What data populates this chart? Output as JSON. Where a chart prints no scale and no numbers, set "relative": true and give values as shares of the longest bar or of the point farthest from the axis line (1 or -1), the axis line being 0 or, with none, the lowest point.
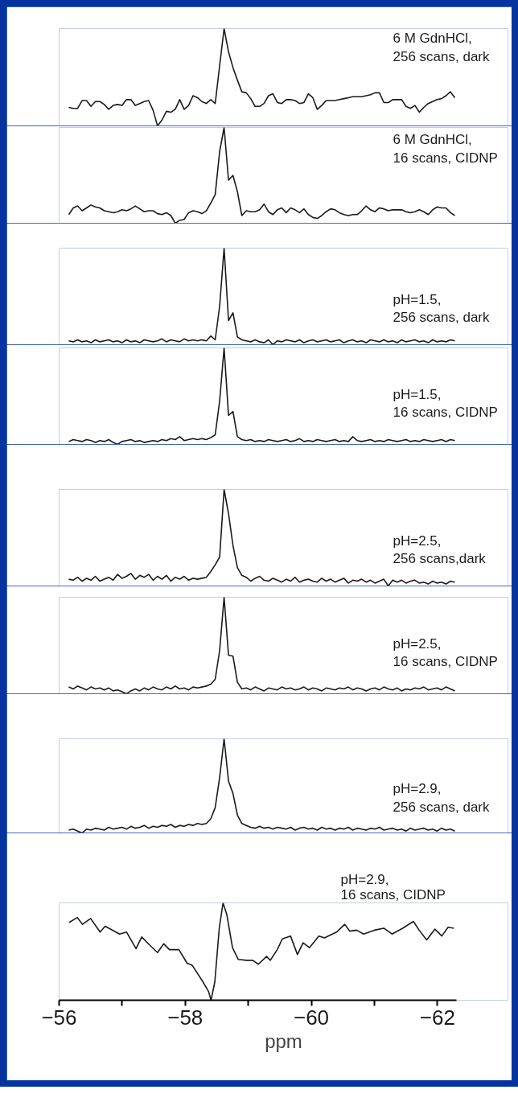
{
  "chart_data": [
    {
      "type": "line",
      "relative": true,
      "tick_labels": false,
      "grid": false,
      "annotations": [
        "6 M GdnHCl,\n256 scans, dark"
      ],
      "categories": [
        null,
        null,
        null,
        null,
        null,
        null,
        null,
        null,
        null,
        null,
        null,
        null,
        null,
        null,
        null,
        null,
        null,
        null,
        null,
        null,
        null,
        null,
        null,
        null,
        null,
        null,
        null,
        null,
        null,
        null,
        null,
        null,
        null,
        null,
        null,
        null,
        null,
        null,
        null,
        null,
        null,
        null,
        null,
        null,
        null,
        null,
        null,
        null,
        null,
        null,
        null,
        null,
        null,
        null,
        null,
        null,
        null,
        null,
        null,
        null,
        null,
        null,
        null,
        null,
        null,
        null,
        null,
        null,
        null,
        null,
        null,
        null,
        null,
        null,
        null,
        null,
        null,
        null,
        null,
        null,
        null,
        null,
        null,
        null,
        null,
        null,
        null,
        null
      ],
      "series": [
        {
          "color": "#1a1a1a",
          "values": [
            0.19,
            0.18,
            0.18,
            0.26,
            0.26,
            0.2,
            0.25,
            0.25,
            0.22,
            0.17,
            0.21,
            0.22,
            0.21,
            0.27,
            0.27,
            0.21,
            0.23,
            0.25,
            0.26,
            0.16,
            0.0,
            0.06,
            0.15,
            0.14,
            0.17,
            0.27,
            0.17,
            0.21,
            0.31,
            0.29,
            0.25,
            0.23,
            0.27,
            0.23,
            0.62,
            1.0,
            0.76,
            0.6,
            0.47,
            0.35,
            0.34,
            0.28,
            0.2,
            0.2,
            0.23,
            0.31,
            0.33,
            0.24,
            0.23,
            0.27,
            0.27,
            0.26,
            0.23,
            0.24,
            0.33,
            0.29,
            0.17,
            0.21,
            0.26,
            0.26,
            0.26,
            0.27,
            0.28,
            0.29,
            0.3,
            0.3,
            0.3,
            0.31,
            0.32,
            0.34,
            0.34,
            0.24,
            0.24,
            0.27,
            0.27,
            0.27,
            0.2,
            0.18,
            0.21,
            0.14,
            0.19,
            0.23,
            0.25,
            0.27,
            0.28,
            0.31,
            0.35,
            0.29
          ]
        }
      ]
    },
    {
      "type": "line",
      "relative": true,
      "tick_labels": false,
      "grid": false,
      "annotations": [
        "6 M GdnHCl,\n16 scans, CIDNP"
      ],
      "categories": [
        null,
        null,
        null,
        null,
        null,
        null,
        null,
        null,
        null,
        null,
        null,
        null,
        null,
        null,
        null,
        null,
        null,
        null,
        null,
        null,
        null,
        null,
        null,
        null,
        null,
        null,
        null,
        null,
        null,
        null,
        null,
        null,
        null,
        null,
        null,
        null,
        null,
        null,
        null,
        null,
        null,
        null,
        null,
        null,
        null,
        null,
        null,
        null,
        null,
        null,
        null,
        null,
        null,
        null,
        null,
        null,
        null,
        null,
        null,
        null,
        null,
        null,
        null,
        null,
        null,
        null,
        null,
        null,
        null,
        null,
        null,
        null,
        null,
        null,
        null,
        null,
        null,
        null,
        null,
        null,
        null,
        null,
        null,
        null,
        null,
        null,
        null,
        null
      ],
      "series": [
        {
          "color": "#1a1a1a",
          "values": [
            0.09,
            0.16,
            0.18,
            0.13,
            0.16,
            0.19,
            0.17,
            0.16,
            0.13,
            0.12,
            0.11,
            0.12,
            0.14,
            0.13,
            0.15,
            0.18,
            0.15,
            0.12,
            0.13,
            0.13,
            0.1,
            0.09,
            0.11,
            0.08,
            0.0,
            0.03,
            0.04,
            0.11,
            0.13,
            0.12,
            0.1,
            0.13,
            0.21,
            0.3,
            0.75,
            1.0,
            0.45,
            0.5,
            0.33,
            0.08,
            0.13,
            0.12,
            0.12,
            0.14,
            0.2,
            0.12,
            0.09,
            0.14,
            0.16,
            0.11,
            0.16,
            0.14,
            0.11,
            0.15,
            0.09,
            0.06,
            0.05,
            0.08,
            0.12,
            0.15,
            0.14,
            0.11,
            0.09,
            0.08,
            0.09,
            0.09,
            0.13,
            0.18,
            0.14,
            0.12,
            0.16,
            0.15,
            0.13,
            0.14,
            0.14,
            0.14,
            0.12,
            0.11,
            0.12,
            0.14,
            0.12,
            0.09,
            0.14,
            0.17,
            0.16,
            0.16,
            0.11,
            0.08
          ]
        }
      ]
    },
    {
      "type": "line",
      "relative": true,
      "tick_labels": false,
      "grid": false,
      "annotations": [
        "pH=1.5,\n256 scans, dark"
      ],
      "categories": [
        null,
        null,
        null,
        null,
        null,
        null,
        null,
        null,
        null,
        null,
        null,
        null,
        null,
        null,
        null,
        null,
        null,
        null,
        null,
        null,
        null,
        null,
        null,
        null,
        null,
        null,
        null,
        null,
        null,
        null,
        null,
        null,
        null,
        null,
        null,
        null,
        null,
        null,
        null,
        null,
        null,
        null,
        null,
        null,
        null,
        null,
        null,
        null,
        null,
        null,
        null,
        null,
        null,
        null,
        null,
        null,
        null,
        null,
        null,
        null,
        null,
        null,
        null,
        null,
        null,
        null,
        null,
        null,
        null,
        null,
        null,
        null,
        null,
        null,
        null,
        null,
        null,
        null,
        null,
        null,
        null,
        null,
        null,
        null,
        null,
        null,
        null,
        null
      ],
      "series": [
        {
          "color": "#1a1a1a",
          "values": [
            0.04,
            0.03,
            0.05,
            0.03,
            0.04,
            0.02,
            0.05,
            0.03,
            0.04,
            0.05,
            0.03,
            0.04,
            0.02,
            0.05,
            0.03,
            0.04,
            0.02,
            0.05,
            0.04,
            0.03,
            0.04,
            0.06,
            0.03,
            0.05,
            0.04,
            0.03,
            0.06,
            0.04,
            0.05,
            0.04,
            0.05,
            0.04,
            0.09,
            0.05,
            0.4,
            1.0,
            0.25,
            0.33,
            0.08,
            0.05,
            0.04,
            0.03,
            0.05,
            0.03,
            0.02,
            0.05,
            0.0,
            0.04,
            0.03,
            0.05,
            0.04,
            0.03,
            0.05,
            0.02,
            0.04,
            0.05,
            0.03,
            0.04,
            0.05,
            0.03,
            0.04,
            0.05,
            0.02,
            0.04,
            0.05,
            0.03,
            0.04,
            0.02,
            0.05,
            0.04,
            0.03,
            0.05,
            0.03,
            0.04,
            0.02,
            0.05,
            0.03,
            0.04,
            0.05,
            0.03,
            0.04,
            0.02,
            0.05,
            0.03,
            0.04,
            0.03,
            0.05,
            0.04
          ]
        }
      ]
    },
    {
      "type": "line",
      "relative": true,
      "tick_labels": false,
      "grid": false,
      "annotations": [
        "pH=1.5,\n16 scans, CIDNP"
      ],
      "categories": [
        null,
        null,
        null,
        null,
        null,
        null,
        null,
        null,
        null,
        null,
        null,
        null,
        null,
        null,
        null,
        null,
        null,
        null,
        null,
        null,
        null,
        null,
        null,
        null,
        null,
        null,
        null,
        null,
        null,
        null,
        null,
        null,
        null,
        null,
        null,
        null,
        null,
        null,
        null,
        null,
        null,
        null,
        null,
        null,
        null,
        null,
        null,
        null,
        null,
        null,
        null,
        null,
        null,
        null,
        null,
        null,
        null,
        null,
        null,
        null,
        null,
        null,
        null,
        null,
        null,
        null,
        null,
        null,
        null,
        null,
        null,
        null,
        null,
        null,
        null,
        null,
        null,
        null,
        null,
        null,
        null,
        null,
        null,
        null,
        null,
        null,
        null,
        null
      ],
      "series": [
        {
          "color": "#1a1a1a",
          "values": [
            0.03,
            0.05,
            0.04,
            0.03,
            0.05,
            0.04,
            0.02,
            0.04,
            0.03,
            0.05,
            0.02,
            0.0,
            0.03,
            0.04,
            0.05,
            0.03,
            0.04,
            0.02,
            0.03,
            0.04,
            0.03,
            0.05,
            0.04,
            0.06,
            0.05,
            0.08,
            0.04,
            0.05,
            0.06,
            0.05,
            0.06,
            0.05,
            0.07,
            0.1,
            0.45,
            1.0,
            0.3,
            0.34,
            0.08,
            0.05,
            0.04,
            0.05,
            0.03,
            0.04,
            0.03,
            0.05,
            0.04,
            0.03,
            0.04,
            0.05,
            0.03,
            0.04,
            0.06,
            0.03,
            0.04,
            0.03,
            0.05,
            0.04,
            0.03,
            0.04,
            0.05,
            0.03,
            0.04,
            0.03,
            0.08,
            0.04,
            0.03,
            0.04,
            0.05,
            0.03,
            0.04,
            0.03,
            0.05,
            0.04,
            0.03,
            0.04,
            0.05,
            0.03,
            0.04,
            0.03,
            0.05,
            0.04,
            0.03,
            0.04,
            0.05,
            0.03,
            0.05,
            0.04
          ]
        }
      ]
    },
    {
      "type": "line",
      "relative": true,
      "tick_labels": false,
      "grid": false,
      "annotations": [
        "pH=2.5,\n256 scans,dark"
      ],
      "categories": [
        null,
        null,
        null,
        null,
        null,
        null,
        null,
        null,
        null,
        null,
        null,
        null,
        null,
        null,
        null,
        null,
        null,
        null,
        null,
        null,
        null,
        null,
        null,
        null,
        null,
        null,
        null,
        null,
        null,
        null,
        null,
        null,
        null,
        null,
        null,
        null,
        null,
        null,
        null,
        null,
        null,
        null,
        null,
        null,
        null,
        null,
        null,
        null,
        null,
        null,
        null,
        null,
        null,
        null,
        null,
        null,
        null,
        null,
        null,
        null,
        null,
        null,
        null,
        null,
        null,
        null,
        null,
        null,
        null,
        null,
        null,
        null,
        null,
        null,
        null,
        null,
        null,
        null,
        null,
        null,
        null,
        null,
        null,
        null,
        null,
        null,
        null,
        null
      ],
      "series": [
        {
          "color": "#1a1a1a",
          "values": [
            0.07,
            0.06,
            0.09,
            0.05,
            0.08,
            0.06,
            0.1,
            0.05,
            0.07,
            0.09,
            0.06,
            0.12,
            0.08,
            0.1,
            0.13,
            0.07,
            0.11,
            0.09,
            0.12,
            0.06,
            0.1,
            0.07,
            0.11,
            0.05,
            0.09,
            0.07,
            0.1,
            0.06,
            0.08,
            0.07,
            0.08,
            0.09,
            0.15,
            0.22,
            0.3,
            1.0,
            0.75,
            0.42,
            0.19,
            0.11,
            0.09,
            0.05,
            0.08,
            0.1,
            0.06,
            0.05,
            0.08,
            0.06,
            0.04,
            0.07,
            0.05,
            0.09,
            0.04,
            0.06,
            0.07,
            0.05,
            0.04,
            0.08,
            0.05,
            0.07,
            0.04,
            0.06,
            0.08,
            0.03,
            0.06,
            0.05,
            0.07,
            0.04,
            0.06,
            0.03,
            0.05,
            0.07,
            0.0,
            0.06,
            0.04,
            0.06,
            0.03,
            0.05,
            0.06,
            0.03,
            0.04,
            0.02,
            0.05,
            0.03,
            0.04,
            0.02,
            0.05,
            0.04
          ]
        }
      ]
    },
    {
      "type": "line",
      "relative": true,
      "tick_labels": false,
      "grid": false,
      "annotations": [
        "pH=2.5,\n16 scans, CIDNP"
      ],
      "categories": [
        null,
        null,
        null,
        null,
        null,
        null,
        null,
        null,
        null,
        null,
        null,
        null,
        null,
        null,
        null,
        null,
        null,
        null,
        null,
        null,
        null,
        null,
        null,
        null,
        null,
        null,
        null,
        null,
        null,
        null,
        null,
        null,
        null,
        null,
        null,
        null,
        null,
        null,
        null,
        null,
        null,
        null,
        null,
        null,
        null,
        null,
        null,
        null,
        null,
        null,
        null,
        null,
        null,
        null,
        null,
        null,
        null,
        null,
        null,
        null,
        null,
        null,
        null,
        null,
        null,
        null,
        null,
        null,
        null,
        null,
        null,
        null,
        null,
        null,
        null,
        null,
        null,
        null,
        null,
        null,
        null,
        null,
        null,
        null,
        null,
        null,
        null,
        null
      ],
      "series": [
        {
          "color": "#1a1a1a",
          "values": [
            0.07,
            0.05,
            0.08,
            0.06,
            0.04,
            0.07,
            0.05,
            0.06,
            0.04,
            0.06,
            0.03,
            0.04,
            0.02,
            0.0,
            0.03,
            0.05,
            0.03,
            0.06,
            0.04,
            0.07,
            0.05,
            0.04,
            0.07,
            0.05,
            0.08,
            0.05,
            0.06,
            0.04,
            0.07,
            0.06,
            0.07,
            0.08,
            0.1,
            0.15,
            0.45,
            1.0,
            0.4,
            0.39,
            0.12,
            0.05,
            0.06,
            0.04,
            0.07,
            0.05,
            0.03,
            0.06,
            0.05,
            0.04,
            0.07,
            0.05,
            0.06,
            0.04,
            0.05,
            0.07,
            0.04,
            0.06,
            0.05,
            0.03,
            0.06,
            0.05,
            0.04,
            0.06,
            0.05,
            0.07,
            0.04,
            0.06,
            0.05,
            0.03,
            0.05,
            0.06,
            0.04,
            0.07,
            0.05,
            0.04,
            0.06,
            0.03,
            0.05,
            0.04,
            0.06,
            0.05,
            0.07,
            0.04,
            0.05,
            0.06,
            0.04,
            0.07,
            0.05,
            0.03
          ]
        }
      ]
    },
    {
      "type": "line",
      "relative": true,
      "tick_labels": false,
      "grid": false,
      "annotations": [
        "pH=2.9,\n256 scans, dark"
      ],
      "categories": [
        null,
        null,
        null,
        null,
        null,
        null,
        null,
        null,
        null,
        null,
        null,
        null,
        null,
        null,
        null,
        null,
        null,
        null,
        null,
        null,
        null,
        null,
        null,
        null,
        null,
        null,
        null,
        null,
        null,
        null,
        null,
        null,
        null,
        null,
        null,
        null,
        null,
        null,
        null,
        null,
        null,
        null,
        null,
        null,
        null,
        null,
        null,
        null,
        null,
        null,
        null,
        null,
        null,
        null,
        null,
        null,
        null,
        null,
        null,
        null,
        null,
        null,
        null,
        null,
        null,
        null,
        null,
        null,
        null,
        null,
        null,
        null,
        null,
        null,
        null,
        null,
        null,
        null,
        null,
        null,
        null,
        null,
        null,
        null,
        null,
        null,
        null,
        null
      ],
      "series": [
        {
          "color": "#1a1a1a",
          "values": [
            0.03,
            0.04,
            0.02,
            0.0,
            0.04,
            0.03,
            0.05,
            0.04,
            0.03,
            0.06,
            0.04,
            0.05,
            0.06,
            0.04,
            0.07,
            0.05,
            0.06,
            0.08,
            0.05,
            0.07,
            0.06,
            0.08,
            0.07,
            0.09,
            0.06,
            0.08,
            0.07,
            0.09,
            0.08,
            0.1,
            0.09,
            0.1,
            0.15,
            0.27,
            0.59,
            1.0,
            0.55,
            0.42,
            0.19,
            0.1,
            0.08,
            0.06,
            0.05,
            0.07,
            0.05,
            0.06,
            0.04,
            0.06,
            0.05,
            0.04,
            0.06,
            0.03,
            0.05,
            0.06,
            0.04,
            0.05,
            0.03,
            0.06,
            0.04,
            0.05,
            0.03,
            0.05,
            0.04,
            0.06,
            0.03,
            0.05,
            0.04,
            0.03,
            0.05,
            0.04,
            0.06,
            0.03,
            0.04,
            0.05,
            0.03,
            0.04,
            0.02,
            0.05,
            0.03,
            0.04,
            0.05,
            0.03,
            0.04,
            0.02,
            0.05,
            0.03,
            0.04,
            0.02
          ]
        }
      ]
    },
    {
      "type": "line",
      "relative": true,
      "xlim": [
        -56.0,
        -62.3
      ],
      "tick_labels": "x",
      "grid": false,
      "xlabel": "ppm",
      "annotations": [
        "pH=2.9,\n16 scans, CIDNP"
      ],
      "xticks": [
        -56,
        {
          "value": -57,
          "label": null
        },
        -58,
        {
          "value": -59,
          "label": null
        },
        -60,
        {
          "value": -61,
          "label": null
        },
        -62
      ],
      "series": [
        {
          "color": "#1a1a1a",
          "x": [
            -56.16,
            -56.29,
            -56.37,
            -56.5,
            -56.65,
            -56.73,
            -56.96,
            -57.07,
            -57.22,
            -57.31,
            -57.43,
            -57.56,
            -57.66,
            -57.75,
            -57.9,
            -58.03,
            -58.11,
            -58.28,
            -58.37,
            -58.41,
            -58.47,
            -58.54,
            -58.6,
            -58.66,
            -58.75,
            -58.84,
            -58.97,
            -59.07,
            -59.16,
            -59.29,
            -59.35,
            -59.46,
            -59.54,
            -59.67,
            -59.78,
            -59.87,
            -59.97,
            -60.12,
            -60.21,
            -60.4,
            -60.53,
            -60.61,
            -60.72,
            -60.83,
            -61.0,
            -61.15,
            -61.28,
            -61.45,
            -61.62,
            -61.71,
            -61.83,
            -61.96,
            -62.07,
            -62.17,
            -62.26
          ],
          "values": [
            0.8,
            0.85,
            0.78,
            0.84,
            0.7,
            0.76,
            0.68,
            0.7,
            0.53,
            0.65,
            0.57,
            0.49,
            0.58,
            0.52,
            0.52,
            0.38,
            0.36,
            0.19,
            0.09,
            0,
            0.19,
            0.74,
            1.0,
            0.88,
            0.54,
            0.42,
            0.41,
            0.41,
            0.37,
            0.45,
            0.41,
            0.52,
            0.63,
            0.66,
            0.47,
            0.59,
            0.54,
            0.66,
            0.64,
            0.7,
            0.78,
            0.71,
            0.72,
            0.68,
            0.72,
            0.74,
            0.68,
            0.74,
            0.81,
            0.72,
            0.62,
            0.73,
            0.66,
            0.75,
            0.74
          ]
        }
      ]
    }
  ]
}
